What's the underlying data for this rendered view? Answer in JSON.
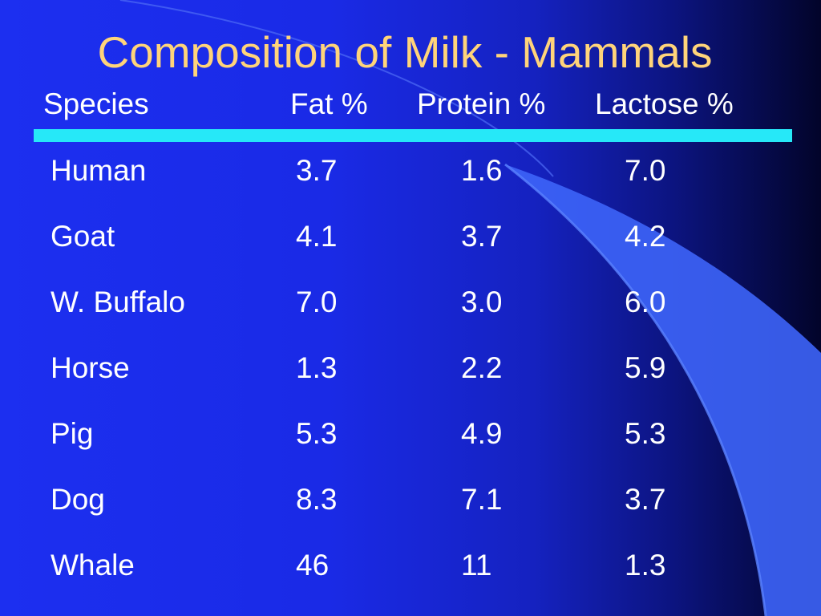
{
  "slide": {
    "title": "Composition of Milk - Mammals",
    "columns": [
      "Species",
      "Fat %",
      "Protein %",
      "Lactose %"
    ],
    "rows": [
      [
        "Human",
        "3.7",
        "1.6",
        "7.0"
      ],
      [
        "Goat",
        "4.1",
        "3.7",
        "4.2"
      ],
      [
        "W. Buffalo",
        "7.0",
        "3.0",
        "6.0"
      ],
      [
        "Horse",
        "1.3",
        "2.2",
        "5.9"
      ],
      [
        "Pig",
        "5.3",
        "4.9",
        "5.3"
      ],
      [
        "Dog",
        "8.3",
        "7.1",
        "3.7"
      ],
      [
        "Whale",
        "46",
        "11",
        "1.3"
      ]
    ]
  },
  "colors": {
    "title": "#ffd47a",
    "text": "#ffffff",
    "rule": "#26e8f8",
    "background": "#1c2ff0",
    "accent_shape": "#3d64f8"
  }
}
